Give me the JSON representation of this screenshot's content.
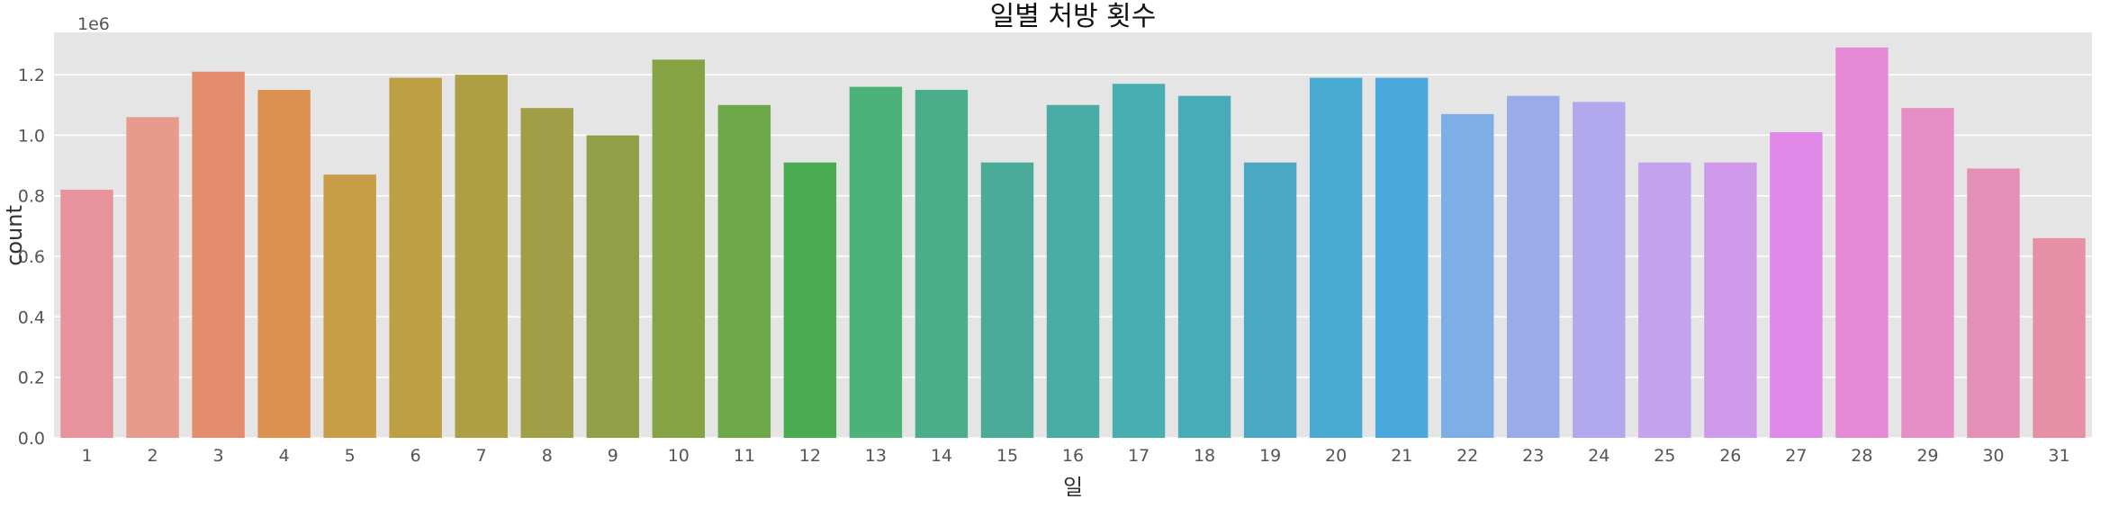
{
  "chart_data": {
    "type": "bar",
    "title": "일별 처방 횟수",
    "xlabel": "일",
    "ylabel": "count",
    "y_scale_label": "1e6",
    "ylim": [
      0,
      1.34
    ],
    "y_ticks": [
      0.0,
      0.2,
      0.4,
      0.6,
      0.8,
      1.0,
      1.2
    ],
    "y_tick_labels": [
      "0.0",
      "0.2",
      "0.4",
      "0.6",
      "0.8",
      "1.0",
      "1.2"
    ],
    "grid": true,
    "legend": "none",
    "categories": [
      "1",
      "2",
      "3",
      "4",
      "5",
      "6",
      "7",
      "8",
      "9",
      "10",
      "11",
      "12",
      "13",
      "14",
      "15",
      "16",
      "17",
      "18",
      "19",
      "20",
      "21",
      "22",
      "23",
      "24",
      "25",
      "26",
      "27",
      "28",
      "29",
      "30",
      "31"
    ],
    "values": [
      0.82,
      1.06,
      1.21,
      1.15,
      0.87,
      1.19,
      1.2,
      1.09,
      1.0,
      1.25,
      1.1,
      0.91,
      1.16,
      1.15,
      0.91,
      1.1,
      1.17,
      1.13,
      0.91,
      1.19,
      1.19,
      1.07,
      1.13,
      1.11,
      0.91,
      0.91,
      1.01,
      1.29,
      1.09,
      0.89,
      0.66
    ],
    "colors": [
      "#e8929c",
      "#e89a8c",
      "#e48c6e",
      "#dc9150",
      "#c99d47",
      "#bd9f44",
      "#ae9f45",
      "#a09f47",
      "#919f48",
      "#87a444",
      "#6fa84a",
      "#4aac52",
      "#4bb27a",
      "#4aae8a",
      "#4aab98",
      "#49aca6",
      "#49aeb0",
      "#4aabb8",
      "#4aa8c4",
      "#49aad2",
      "#4aa8dc",
      "#7eaee6",
      "#9aabea",
      "#b2a8ee",
      "#c4a2ee",
      "#d09aea",
      "#e089e8",
      "#e78ad6",
      "#e68ec6",
      "#e48fb6",
      "#e88fa8"
    ]
  }
}
